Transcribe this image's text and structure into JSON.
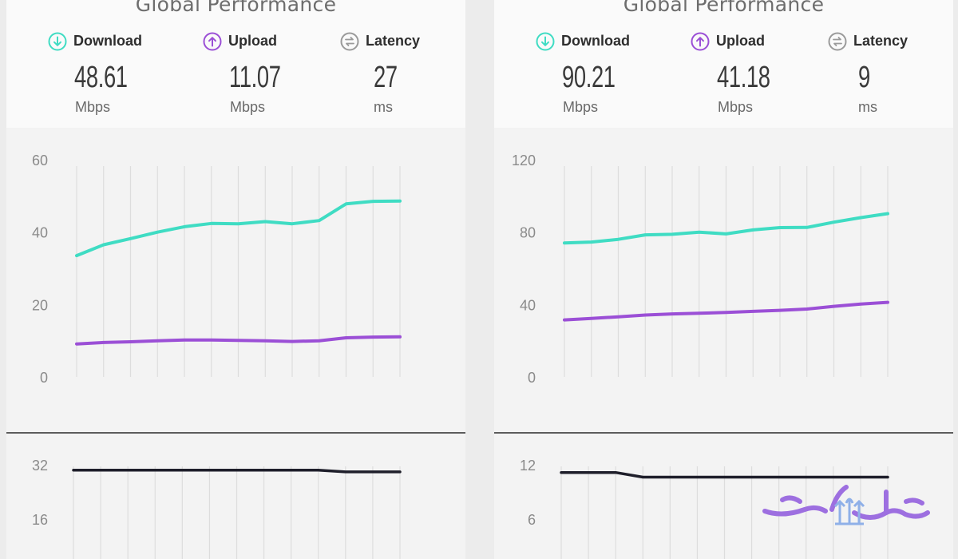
{
  "colors": {
    "download": "#3fdcc3",
    "upload": "#9b4fd6",
    "latency_icon": "#9a9a9a",
    "latency_line": "#1e1e2a",
    "grid": "#dddddd",
    "divider": "#2b2b2b",
    "logo": "#9d6fe0"
  },
  "panels": [
    {
      "title": "Global Performance",
      "metrics": [
        {
          "key": "download",
          "label": "Download",
          "value": "48.61",
          "unit": "Mbps",
          "icon": "arrow-down-circle-icon"
        },
        {
          "key": "upload",
          "label": "Upload",
          "value": "11.07",
          "unit": "Mbps",
          "icon": "arrow-up-circle-icon"
        },
        {
          "key": "latency",
          "label": "Latency",
          "value": "27",
          "unit": "ms",
          "icon": "latency-circle-icon"
        }
      ]
    },
    {
      "title": "Global Performance",
      "metrics": [
        {
          "key": "download",
          "label": "Download",
          "value": "90.21",
          "unit": "Mbps",
          "icon": "arrow-down-circle-icon"
        },
        {
          "key": "upload",
          "label": "Upload",
          "value": "41.18",
          "unit": "Mbps",
          "icon": "arrow-up-circle-icon"
        },
        {
          "key": "latency",
          "label": "Latency",
          "value": "9",
          "unit": "ms",
          "icon": "latency-circle-icon"
        }
      ]
    }
  ],
  "chart_data": [
    {
      "type": "line",
      "panel": 0,
      "chart": "speed",
      "ylim": [
        0,
        60
      ],
      "yticks": [
        "60",
        "40",
        "20",
        "0"
      ],
      "x": [
        1,
        2,
        3,
        4,
        5,
        6,
        7,
        8,
        9,
        10,
        11,
        12,
        13
      ],
      "series": [
        {
          "key": "download",
          "values": [
            33.5,
            36.5,
            38.2,
            40.0,
            41.5,
            42.4,
            42.3,
            42.9,
            42.3,
            43.2,
            47.8,
            48.5,
            48.6
          ]
        },
        {
          "key": "upload",
          "values": [
            9.1,
            9.5,
            9.7,
            10.0,
            10.2,
            10.2,
            10.1,
            10.0,
            9.8,
            10.0,
            10.8,
            11.0,
            11.07
          ]
        }
      ],
      "grid": true
    },
    {
      "type": "line",
      "panel": 0,
      "chart": "latency",
      "ylim": [
        0,
        32
      ],
      "yticks": [
        "32",
        "16"
      ],
      "x": [
        1,
        2,
        3,
        4,
        5,
        6,
        7,
        8,
        9,
        10,
        11,
        12,
        13
      ],
      "series": [
        {
          "key": "latency",
          "values": [
            28,
            28,
            28,
            28,
            28,
            28,
            28,
            28,
            28,
            28,
            27,
            27,
            27
          ]
        }
      ],
      "grid": true
    },
    {
      "type": "line",
      "panel": 1,
      "chart": "speed",
      "ylim": [
        0,
        120
      ],
      "yticks": [
        "120",
        "80",
        "40",
        "0"
      ],
      "x": [
        1,
        2,
        3,
        4,
        5,
        6,
        7,
        8,
        9,
        10,
        11,
        12,
        13
      ],
      "series": [
        {
          "key": "download",
          "values": [
            74,
            74.5,
            76,
            78.5,
            78.8,
            80,
            79,
            81.2,
            82.5,
            82.6,
            85.5,
            88,
            90.2
          ]
        },
        {
          "key": "upload",
          "values": [
            31.5,
            32.3,
            33.2,
            34.2,
            34.8,
            35.2,
            35.6,
            36.2,
            36.8,
            37.5,
            39.0,
            40.3,
            41.2
          ]
        }
      ],
      "grid": true
    },
    {
      "type": "line",
      "panel": 1,
      "chart": "latency",
      "ylim": [
        0,
        12
      ],
      "yticks": [
        "12",
        "6"
      ],
      "x": [
        1,
        2,
        3,
        4,
        5,
        6,
        7,
        8,
        9,
        10,
        11,
        12,
        13
      ],
      "series": [
        {
          "key": "latency",
          "values": [
            10,
            10,
            10,
            9,
            9,
            9,
            9,
            9,
            9,
            9,
            9,
            9,
            9
          ]
        }
      ],
      "grid": true
    }
  ]
}
